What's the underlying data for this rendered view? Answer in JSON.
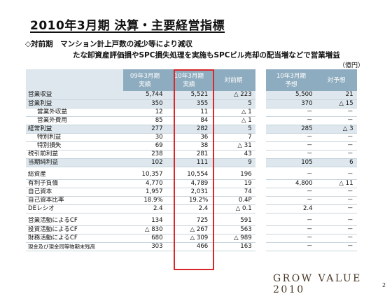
{
  "title": "2010年3月期 決算・主要経営指標",
  "notes": {
    "line1": "◇対前期　マンション計上戸数の減少等により減収",
    "line2": "たな卸資産評価損やSPC損失処理を実施もSPCビル売却の配当増などで営業増益",
    "unit": "（億円）"
  },
  "headers": {
    "h1": "09年3月期\n実績",
    "h2": "10年3月期\n実績",
    "h3": "対前期",
    "h4": "10年3月期\n予想",
    "h5": "対予想"
  },
  "rows": [
    {
      "label": "営業収益",
      "c1": "5,744",
      "c2": "5,521",
      "c3": "△ 223",
      "c4": "5,500",
      "c5": "21"
    },
    {
      "label": "営業利益",
      "c1": "350",
      "c2": "355",
      "c3": "5",
      "c4": "370",
      "c5": "△ 15"
    },
    {
      "label": "営業外収益",
      "c1": "12",
      "c2": "11",
      "c3": "△ 1",
      "c4": "－",
      "c5": "－"
    },
    {
      "label": "営業外費用",
      "c1": "85",
      "c2": "84",
      "c3": "△ 1",
      "c4": "－",
      "c5": "－"
    },
    {
      "label": "経常利益",
      "c1": "277",
      "c2": "282",
      "c3": "5",
      "c4": "285",
      "c5": "△ 3"
    },
    {
      "label": "特別利益",
      "c1": "30",
      "c2": "36",
      "c3": "7",
      "c4": "－",
      "c5": "－"
    },
    {
      "label": "特別損失",
      "c1": "69",
      "c2": "38",
      "c3": "△ 31",
      "c4": "－",
      "c5": "－"
    },
    {
      "label": "税引前利益",
      "c1": "238",
      "c2": "281",
      "c3": "43",
      "c4": "－",
      "c5": "－"
    },
    {
      "label": "当期純利益",
      "c1": "102",
      "c2": "111",
      "c3": "9",
      "c4": "105",
      "c5": "6"
    },
    {
      "label": "総資産",
      "c1": "10,357",
      "c2": "10,554",
      "c3": "196",
      "c4": "－",
      "c5": "－"
    },
    {
      "label": "有利子負債",
      "c1": "4,770",
      "c2": "4,789",
      "c3": "19",
      "c4": "4,800",
      "c5": "△ 11"
    },
    {
      "label": "自己資本",
      "c1": "1,957",
      "c2": "2,031",
      "c3": "74",
      "c4": "－",
      "c5": "－"
    },
    {
      "label": "自己資本比率",
      "c1": "18.9%",
      "c2": "19.2%",
      "c3": "0.4P",
      "c4": "－",
      "c5": "－"
    },
    {
      "label": "DEレシオ",
      "c1": "2.4",
      "c2": "2.4",
      "c3": "△ 0.1",
      "c4": "2.4",
      "c5": "－"
    },
    {
      "label": "営業活動によるCF",
      "c1": "134",
      "c2": "725",
      "c3": "591",
      "c4": "－",
      "c5": "－"
    },
    {
      "label": "投資活動によるCF",
      "c1": "△ 830",
      "c2": "△ 267",
      "c3": "563",
      "c4": "－",
      "c5": "－"
    },
    {
      "label": "財務活動によるCF",
      "c1": "680",
      "c2": "△ 309",
      "c3": "△ 989",
      "c4": "－",
      "c5": "－"
    },
    {
      "label": "現金及び現金同等物期末残高",
      "c1": "303",
      "c2": "466",
      "c3": "163",
      "c4": "－",
      "c5": "－"
    }
  ],
  "brand": "GROW VALUE 2010",
  "page_number": "2",
  "colors": {
    "header_bg": "#8eacbf",
    "row_shade": "#dde7ed",
    "highlight_border": "#d8282a"
  }
}
